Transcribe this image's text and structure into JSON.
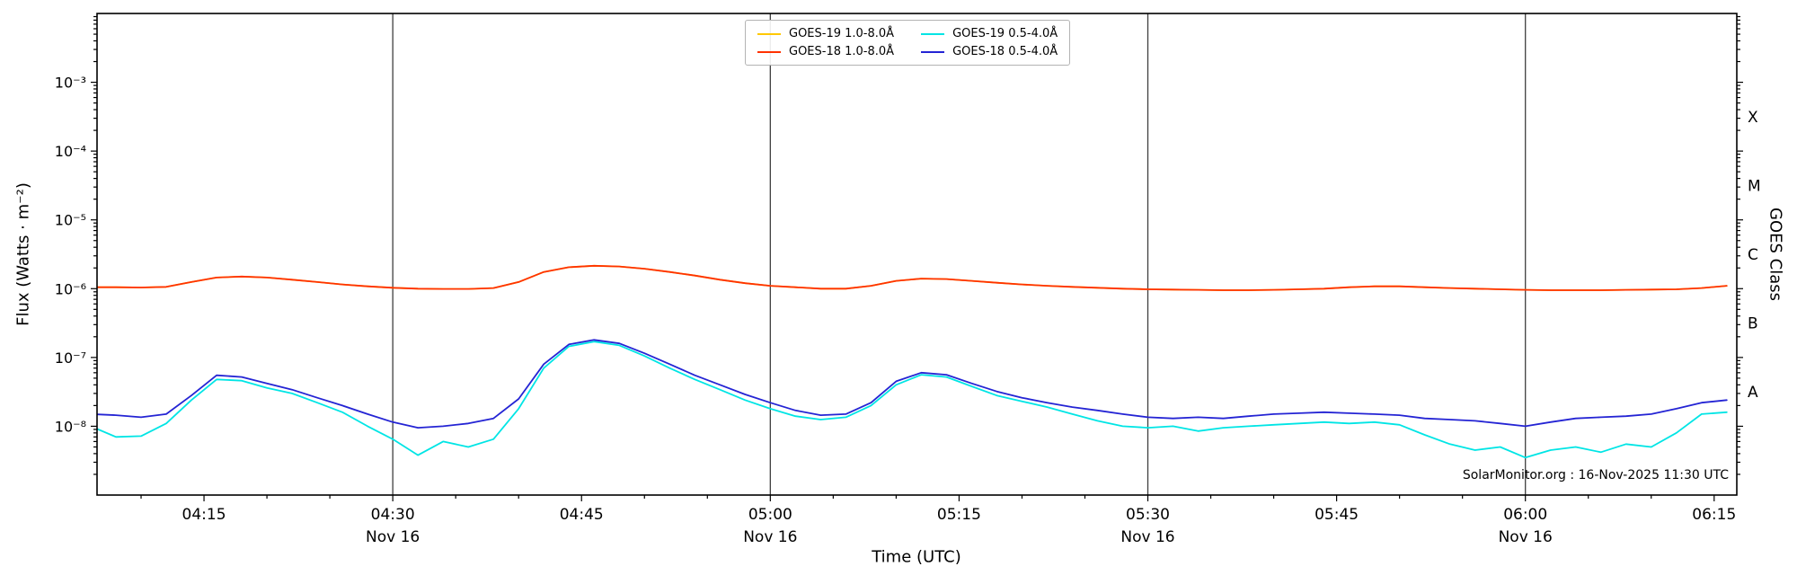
{
  "figure": {
    "background": "#ffffff",
    "annotation": "SolarMonitor.org : 16-Nov-2025 11:30 UTC"
  },
  "chart_data": {
    "type": "line",
    "title": "",
    "xlabel": "Time (UTC)",
    "ylabel": "Flux (Watts · m⁻²)",
    "ylabel_right": "GOES Class",
    "yscale": "log",
    "x_unit": "minutes after 04:00 UTC, Nov 16",
    "xlim": [
      6.5,
      136.8
    ],
    "ylim_log10": [
      -9,
      -2
    ],
    "grid_color": "#3f3f3f",
    "grid_vertical_minutes": [
      30,
      60,
      90,
      120
    ],
    "x_major_ticks": [
      {
        "t": 15,
        "label": "04:15"
      },
      {
        "t": 30,
        "label": "04:30"
      },
      {
        "t": 45,
        "label": "04:45"
      },
      {
        "t": 60,
        "label": "05:00"
      },
      {
        "t": 75,
        "label": "05:15"
      },
      {
        "t": 90,
        "label": "05:30"
      },
      {
        "t": 105,
        "label": "05:45"
      },
      {
        "t": 120,
        "label": "06:00"
      },
      {
        "t": 135,
        "label": "06:15"
      }
    ],
    "x_day_label": "Nov 16",
    "x_day_tick_minutes": [
      30,
      60,
      90,
      120
    ],
    "y_ticks": [
      {
        "exp": -3,
        "label": "10⁻³"
      },
      {
        "exp": -4,
        "label": "10⁻⁴"
      },
      {
        "exp": -5,
        "label": "10⁻⁵"
      },
      {
        "exp": -6,
        "label": "10⁻⁶"
      },
      {
        "exp": -7,
        "label": "10⁻⁷"
      },
      {
        "exp": -8,
        "label": "10⁻⁸"
      }
    ],
    "goes_class_labels": [
      {
        "label": "X",
        "log10": -3.5
      },
      {
        "label": "M",
        "log10": -4.5
      },
      {
        "label": "C",
        "log10": -5.5
      },
      {
        "label": "B",
        "log10": -6.5
      },
      {
        "label": "A",
        "log10": -7.5
      }
    ],
    "x": [
      6,
      8,
      10,
      12,
      14,
      16,
      18,
      20,
      22,
      24,
      26,
      28,
      30,
      32,
      34,
      36,
      38,
      40,
      42,
      44,
      46,
      48,
      50,
      52,
      54,
      56,
      58,
      60,
      62,
      64,
      66,
      68,
      70,
      72,
      74,
      76,
      78,
      80,
      82,
      84,
      86,
      88,
      90,
      92,
      94,
      96,
      98,
      100,
      102,
      104,
      106,
      108,
      110,
      112,
      114,
      116,
      118,
      120,
      122,
      124,
      126,
      128,
      130,
      132,
      134,
      136
    ],
    "series": [
      {
        "name": "GOES-19 1.0-8.0Å",
        "color": "#ffc800",
        "values": [
          1.05e-06,
          1.05e-06,
          1.04e-06,
          1.06e-06,
          1.25e-06,
          1.45e-06,
          1.5e-06,
          1.45e-06,
          1.35e-06,
          1.25e-06,
          1.15e-06,
          1.08e-06,
          1.03e-06,
          1e-06,
          9.9e-07,
          9.9e-07,
          1.02e-06,
          1.25e-06,
          1.75e-06,
          2.05e-06,
          2.15e-06,
          2.1e-06,
          1.95e-06,
          1.75e-06,
          1.55e-06,
          1.35e-06,
          1.2e-06,
          1.1e-06,
          1.05e-06,
          1e-06,
          1e-06,
          1.1e-06,
          1.3e-06,
          1.4e-06,
          1.38e-06,
          1.3e-06,
          1.22e-06,
          1.15e-06,
          1.1e-06,
          1.06e-06,
          1.03e-06,
          1e-06,
          9.8e-07,
          9.7e-07,
          9.6e-07,
          9.5e-07,
          9.5e-07,
          9.6e-07,
          9.8e-07,
          1e-06,
          1.05e-06,
          1.08e-06,
          1.08e-06,
          1.05e-06,
          1.02e-06,
          1e-06,
          9.8e-07,
          9.6e-07,
          9.5e-07,
          9.5e-07,
          9.5e-07,
          9.6e-07,
          9.7e-07,
          9.8e-07,
          1.02e-06,
          1.1e-06
        ]
      },
      {
        "name": "GOES-18 1.0-8.0Å",
        "color": "#ff3200",
        "values": [
          1.05e-06,
          1.05e-06,
          1.04e-06,
          1.06e-06,
          1.25e-06,
          1.45e-06,
          1.5e-06,
          1.45e-06,
          1.35e-06,
          1.25e-06,
          1.15e-06,
          1.08e-06,
          1.03e-06,
          1e-06,
          9.9e-07,
          9.9e-07,
          1.02e-06,
          1.25e-06,
          1.75e-06,
          2.05e-06,
          2.15e-06,
          2.1e-06,
          1.95e-06,
          1.75e-06,
          1.55e-06,
          1.35e-06,
          1.2e-06,
          1.1e-06,
          1.05e-06,
          1e-06,
          1e-06,
          1.1e-06,
          1.3e-06,
          1.4e-06,
          1.38e-06,
          1.3e-06,
          1.22e-06,
          1.15e-06,
          1.1e-06,
          1.06e-06,
          1.03e-06,
          1e-06,
          9.8e-07,
          9.7e-07,
          9.6e-07,
          9.5e-07,
          9.5e-07,
          9.6e-07,
          9.8e-07,
          1e-06,
          1.05e-06,
          1.08e-06,
          1.08e-06,
          1.05e-06,
          1.02e-06,
          1e-06,
          9.8e-07,
          9.6e-07,
          9.5e-07,
          9.5e-07,
          9.5e-07,
          9.6e-07,
          9.7e-07,
          9.8e-07,
          1.02e-06,
          1.1e-06
        ]
      },
      {
        "name": "GOES-19 0.5-4.0Å",
        "color": "#00e5e5",
        "values": [
          1e-08,
          7e-09,
          7.2e-09,
          1.1e-08,
          2.4e-08,
          4.8e-08,
          4.6e-08,
          3.6e-08,
          3e-08,
          2.2e-08,
          1.6e-08,
          1e-08,
          6.5e-09,
          3.8e-09,
          6e-09,
          5e-09,
          6.5e-09,
          1.8e-08,
          7e-08,
          1.45e-07,
          1.7e-07,
          1.5e-07,
          1.05e-07,
          7e-08,
          4.8e-08,
          3.4e-08,
          2.4e-08,
          1.8e-08,
          1.4e-08,
          1.25e-08,
          1.35e-08,
          2e-08,
          4e-08,
          5.6e-08,
          5.2e-08,
          3.8e-08,
          2.8e-08,
          2.3e-08,
          1.9e-08,
          1.5e-08,
          1.2e-08,
          1e-08,
          9.5e-09,
          1e-08,
          8.5e-09,
          9.5e-09,
          1e-08,
          1.05e-08,
          1.1e-08,
          1.15e-08,
          1.1e-08,
          1.15e-08,
          1.05e-08,
          7.5e-09,
          5.5e-09,
          4.5e-09,
          5e-09,
          3.5e-09,
          4.5e-09,
          5e-09,
          4.2e-09,
          5.5e-09,
          5e-09,
          8e-09,
          1.5e-08,
          1.6e-08
        ]
      },
      {
        "name": "GOES-18 0.5-4.0Å",
        "color": "#2424d4",
        "values": [
          1.5e-08,
          1.45e-08,
          1.35e-08,
          1.5e-08,
          2.8e-08,
          5.5e-08,
          5.2e-08,
          4.2e-08,
          3.4e-08,
          2.6e-08,
          2e-08,
          1.5e-08,
          1.15e-08,
          9.5e-09,
          1e-08,
          1.1e-08,
          1.3e-08,
          2.5e-08,
          8e-08,
          1.55e-07,
          1.8e-07,
          1.6e-07,
          1.15e-07,
          8e-08,
          5.5e-08,
          4e-08,
          2.9e-08,
          2.2e-08,
          1.7e-08,
          1.45e-08,
          1.5e-08,
          2.2e-08,
          4.5e-08,
          6e-08,
          5.6e-08,
          4.2e-08,
          3.2e-08,
          2.6e-08,
          2.2e-08,
          1.9e-08,
          1.7e-08,
          1.5e-08,
          1.35e-08,
          1.3e-08,
          1.35e-08,
          1.3e-08,
          1.4e-08,
          1.5e-08,
          1.55e-08,
          1.6e-08,
          1.55e-08,
          1.5e-08,
          1.45e-08,
          1.3e-08,
          1.25e-08,
          1.2e-08,
          1.1e-08,
          1e-08,
          1.15e-08,
          1.3e-08,
          1.35e-08,
          1.4e-08,
          1.5e-08,
          1.8e-08,
          2.2e-08,
          2.4e-08
        ]
      }
    ],
    "legend_dom_order": [
      0,
      2,
      1,
      3
    ],
    "legend_position": "top-center",
    "grid": "vertical-only"
  }
}
